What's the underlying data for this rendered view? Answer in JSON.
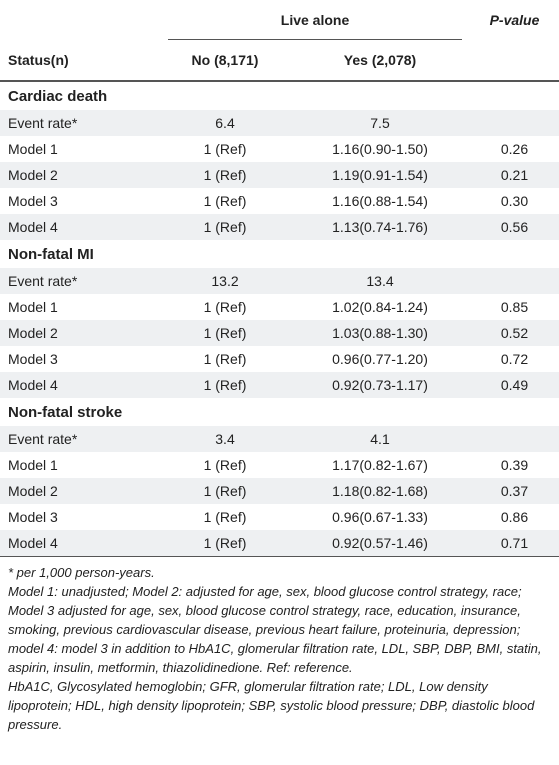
{
  "table": {
    "header": {
      "group": "Live alone",
      "pvalue": "P-value",
      "status": "Status(n)",
      "no": "No (8,171)",
      "yes": "Yes (2,078)"
    },
    "sections": [
      {
        "title": "Cardiac death",
        "rows": [
          [
            "Event rate*",
            "6.4",
            "7.5",
            ""
          ],
          [
            "Model 1",
            "1 (Ref)",
            "1.16(0.90-1.50)",
            "0.26"
          ],
          [
            "Model 2",
            "1 (Ref)",
            "1.19(0.91-1.54)",
            "0.21"
          ],
          [
            "Model 3",
            "1 (Ref)",
            "1.16(0.88-1.54)",
            "0.30"
          ],
          [
            "Model 4",
            "1 (Ref)",
            "1.13(0.74-1.76)",
            "0.56"
          ]
        ]
      },
      {
        "title": "Non-fatal MI",
        "rows": [
          [
            "Event rate*",
            "13.2",
            "13.4",
            ""
          ],
          [
            "Model 1",
            "1 (Ref)",
            "1.02(0.84-1.24)",
            "0.85"
          ],
          [
            "Model 2",
            "1 (Ref)",
            "1.03(0.88-1.30)",
            "0.52"
          ],
          [
            "Model 3",
            "1 (Ref)",
            "0.96(0.77-1.20)",
            "0.72"
          ],
          [
            "Model 4",
            "1 (Ref)",
            "0.92(0.73-1.17)",
            "0.49"
          ]
        ]
      },
      {
        "title": "Non-fatal stroke",
        "rows": [
          [
            "Event rate*",
            "3.4",
            "4.1",
            ""
          ],
          [
            "Model 1",
            "1 (Ref)",
            "1.17(0.82-1.67)",
            "0.39"
          ],
          [
            "Model 2",
            "1 (Ref)",
            "1.18(0.82-1.68)",
            "0.37"
          ],
          [
            "Model 3",
            "1 (Ref)",
            "0.96(0.67-1.33)",
            "0.86"
          ],
          [
            "Model 4",
            "1 (Ref)",
            "0.92(0.57-1.46)",
            "0.71"
          ]
        ]
      }
    ],
    "footnotes": [
      "* per 1,000 person-years.",
      "Model 1: unadjusted; Model 2: adjusted for age, sex, blood glucose control strategy, race; Model 3 adjusted for age, sex, blood glucose control strategy, race, education, insurance, smoking, previous cardiovascular disease, previous heart failure, proteinuria, depression; model 4: model 3 in addition to HbA1C, glomerular filtration rate, LDL, SBP, DBP, BMI, statin, aspirin, insulin, metformin, thiazolidinedione. Ref: reference.",
      "HbA1C, Glycosylated hemoglobin; GFR, glomerular filtration rate; LDL, Low density lipoprotein; HDL, high density lipoprotein; SBP, systolic blood pressure; DBP, diastolic blood pressure."
    ]
  }
}
